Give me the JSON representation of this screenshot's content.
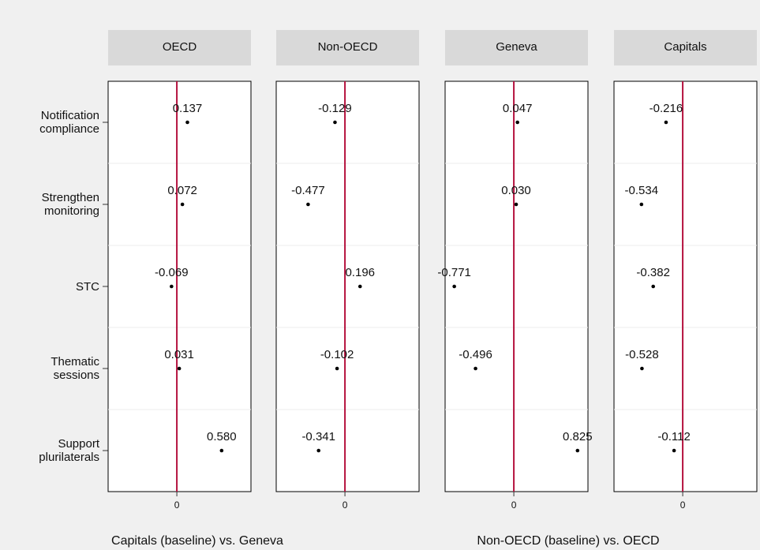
{
  "chart_data": {
    "type": "dot",
    "categories": [
      "Notification compliance",
      "Strengthen monitoring",
      "STC",
      "Thematic sessions",
      "Support plurilaterals"
    ],
    "series": [
      {
        "name": "OECD",
        "values": [
          0.137,
          0.072,
          -0.069,
          0.031,
          0.58
        ],
        "value_labels": [
          "0.137",
          "0.072",
          "-0.069",
          "0.031",
          "0.580"
        ]
      },
      {
        "name": "Non-OECD",
        "values": [
          -0.129,
          -0.477,
          0.196,
          -0.102,
          -0.341
        ],
        "value_labels": [
          "-0.129",
          "-0.477",
          "0.196",
          "-0.102",
          "-0.341"
        ]
      },
      {
        "name": "Geneva",
        "values": [
          0.047,
          0.03,
          -0.771,
          -0.496,
          0.825
        ],
        "value_labels": [
          "0.047",
          "0.030",
          "-0.771",
          "-0.496",
          "0.825"
        ]
      },
      {
        "name": "Capitals",
        "values": [
          -0.216,
          -0.534,
          -0.382,
          -0.528,
          -0.112
        ],
        "value_labels": [
          "-0.216",
          "-0.534",
          "-0.382",
          "-0.528",
          "-0.112"
        ]
      }
    ],
    "xlim": [
      -0.89,
      0.96
    ],
    "xticks": [
      0
    ],
    "xlabels": [
      "Capitals (baseline) vs. Geneva",
      "Non-OECD (baseline) vs. OECD"
    ],
    "refline_color": "#b5123f",
    "color": "#000000",
    "strip_color": "#d9d9d9"
  }
}
